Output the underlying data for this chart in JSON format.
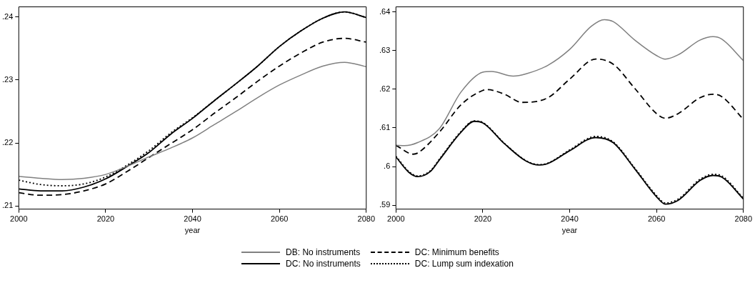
{
  "chart_data": [
    {
      "type": "line",
      "xlabel": "year",
      "xlim": [
        2000,
        2080
      ],
      "xticks": [
        2000,
        2020,
        2040,
        2060,
        2080
      ],
      "ylim": [
        0.2095,
        0.2416
      ],
      "yticks": [
        {
          "value": 0.21,
          "label": ".21"
        },
        {
          "value": 0.22,
          "label": ".22"
        },
        {
          "value": 0.23,
          "label": ".23"
        },
        {
          "value": 0.24,
          "label": ".24"
        }
      ],
      "grid": false,
      "legend": "bottom",
      "marker": "none",
      "series": [
        {
          "name": "DB: No instruments",
          "color": "#808080",
          "line_style": "solid",
          "x": [
            2000,
            2005,
            2010,
            2015,
            2020,
            2025,
            2030,
            2035,
            2040,
            2045,
            2050,
            2055,
            2060,
            2065,
            2070,
            2075,
            2080
          ],
          "values": [
            0.2147,
            0.2144,
            0.2142,
            0.2144,
            0.215,
            0.2163,
            0.2178,
            0.2192,
            0.2208,
            0.2229,
            0.225,
            0.2272,
            0.2292,
            0.2308,
            0.2322,
            0.2328,
            0.2321
          ]
        },
        {
          "name": "DC: No instruments",
          "color": "#000000",
          "line_style": "solid",
          "x": [
            2000,
            2005,
            2010,
            2015,
            2020,
            2025,
            2030,
            2035,
            2040,
            2045,
            2050,
            2055,
            2060,
            2065,
            2070,
            2075,
            2080
          ],
          "values": [
            0.2127,
            0.2124,
            0.2124,
            0.213,
            0.2143,
            0.2163,
            0.2185,
            0.2214,
            0.2239,
            0.2267,
            0.2294,
            0.2322,
            0.2353,
            0.2378,
            0.2398,
            0.2408,
            0.2399
          ]
        },
        {
          "name": "DC: Minimum benefits",
          "color": "#000000",
          "line_style": "dashed",
          "x": [
            2000,
            2005,
            2010,
            2015,
            2020,
            2025,
            2030,
            2035,
            2040,
            2045,
            2050,
            2055,
            2060,
            2065,
            2070,
            2075,
            2080
          ],
          "values": [
            0.2121,
            0.2117,
            0.2118,
            0.2124,
            0.2135,
            0.2155,
            0.2177,
            0.2199,
            0.2221,
            0.2247,
            0.2272,
            0.2298,
            0.2322,
            0.2343,
            0.236,
            0.2366,
            0.236
          ]
        },
        {
          "name": "DC: Lump sum indexation",
          "color": "#000000",
          "line_style": "dotted",
          "x": [
            2000,
            2005,
            2010,
            2015,
            2020,
            2025,
            2030,
            2035,
            2040,
            2045,
            2050,
            2055,
            2060,
            2065,
            2070,
            2075,
            2080
          ],
          "values": [
            0.2141,
            0.2134,
            0.2132,
            0.2135,
            0.2146,
            0.2165,
            0.2188,
            0.2216,
            0.224,
            0.2267,
            0.2294,
            0.2322,
            0.2353,
            0.2378,
            0.2398,
            0.2408,
            0.2399
          ]
        }
      ]
    },
    {
      "type": "line",
      "xlabel": "year",
      "xlim": [
        2000,
        2080
      ],
      "xticks": [
        2000,
        2020,
        2040,
        2060,
        2080
      ],
      "ylim": [
        0.589,
        0.6413
      ],
      "yticks": [
        {
          "value": 0.59,
          "label": ".59"
        },
        {
          "value": 0.6,
          "label": ".6"
        },
        {
          "value": 0.61,
          "label": ".61"
        },
        {
          "value": 0.62,
          "label": ".62"
        },
        {
          "value": 0.63,
          "label": ".63"
        },
        {
          "value": 0.64,
          "label": ".64"
        }
      ],
      "grid": false,
      "marker": "none",
      "series": [
        {
          "color": "#808080",
          "line_style": "solid",
          "x": [
            2000,
            2002,
            2005,
            2010,
            2015,
            2020,
            2022,
            2027,
            2030,
            2035,
            2040,
            2045,
            2048,
            2050,
            2055,
            2060,
            2062,
            2065,
            2070,
            2073,
            2075,
            2080
          ],
          "values": [
            0.6055,
            0.6054,
            0.6062,
            0.6098,
            0.6193,
            0.6244,
            0.6246,
            0.6234,
            0.624,
            0.6262,
            0.6303,
            0.6363,
            0.638,
            0.6375,
            0.6327,
            0.6287,
            0.6278,
            0.6289,
            0.6327,
            0.6336,
            0.633,
            0.6274
          ]
        },
        {
          "color": "#000000",
          "line_style": "solid",
          "x": [
            2000,
            2003,
            2005,
            2008,
            2010,
            2015,
            2018,
            2020,
            2025,
            2030,
            2033,
            2035,
            2040,
            2046,
            2050,
            2055,
            2060,
            2062,
            2065,
            2070,
            2073,
            2075,
            2080
          ],
          "values": [
            0.6025,
            0.5985,
            0.5974,
            0.5988,
            0.6017,
            0.6089,
            0.6117,
            0.6113,
            0.6059,
            0.6014,
            0.6004,
            0.6008,
            0.6041,
            0.6075,
            0.6062,
            0.5994,
            0.5922,
            0.5903,
            0.5913,
            0.5964,
            0.5977,
            0.5973,
            0.5916
          ]
        },
        {
          "color": "#000000",
          "line_style": "dashed",
          "x": [
            2000,
            2004,
            2005,
            2010,
            2015,
            2020,
            2021,
            2025,
            2029,
            2035,
            2040,
            2046,
            2050,
            2055,
            2060,
            2062,
            2065,
            2070,
            2073,
            2075,
            2080
          ],
          "values": [
            0.6055,
            0.6032,
            0.6035,
            0.6089,
            0.616,
            0.6197,
            0.6199,
            0.6187,
            0.6166,
            0.6178,
            0.6226,
            0.6278,
            0.6265,
            0.6202,
            0.6137,
            0.6125,
            0.6137,
            0.6178,
            0.6187,
            0.6181,
            0.6122
          ]
        },
        {
          "color": "#000000",
          "line_style": "dotted",
          "x": [
            2000,
            2003,
            2005,
            2008,
            2010,
            2015,
            2018,
            2020,
            2025,
            2030,
            2033,
            2035,
            2040,
            2046,
            2050,
            2055,
            2060,
            2062,
            2065,
            2070,
            2073,
            2075,
            2080
          ],
          "values": [
            0.6027,
            0.5987,
            0.5976,
            0.599,
            0.6019,
            0.6091,
            0.6118,
            0.6114,
            0.606,
            0.6015,
            0.6005,
            0.6009,
            0.6043,
            0.6078,
            0.6064,
            0.5996,
            0.5925,
            0.5906,
            0.5916,
            0.5967,
            0.598,
            0.5976,
            0.5918
          ]
        }
      ]
    }
  ]
}
